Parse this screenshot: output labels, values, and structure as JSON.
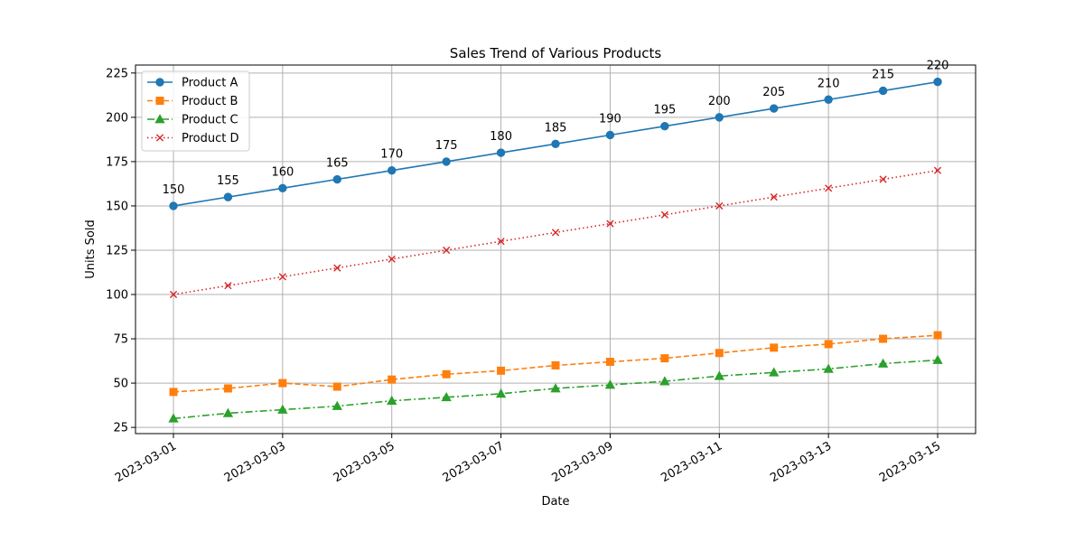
{
  "chart_data": {
    "type": "line",
    "title": "Sales Trend of Various Products",
    "xlabel": "Date",
    "ylabel": "Units Sold",
    "x": [
      "2023-03-01",
      "2023-03-02",
      "2023-03-03",
      "2023-03-04",
      "2023-03-05",
      "2023-03-06",
      "2023-03-07",
      "2023-03-08",
      "2023-03-09",
      "2023-03-10",
      "2023-03-11",
      "2023-03-12",
      "2023-03-13",
      "2023-03-14",
      "2023-03-15"
    ],
    "x_tick_labels": [
      "2023-03-01",
      "2023-03-03",
      "2023-03-05",
      "2023-03-07",
      "2023-03-09",
      "2023-03-11",
      "2023-03-13",
      "2023-03-15"
    ],
    "ylim": [
      21.5,
      229.5
    ],
    "y_ticks": [
      25,
      50,
      75,
      100,
      125,
      150,
      175,
      200,
      225
    ],
    "grid": true,
    "legend_position": "top-left",
    "series": [
      {
        "name": "Product A",
        "color": "#1f77b4",
        "marker": "circle",
        "line_style": "solid",
        "show_data_labels": true,
        "values": [
          150,
          155,
          160,
          165,
          170,
          175,
          180,
          185,
          190,
          195,
          200,
          205,
          210,
          215,
          220
        ]
      },
      {
        "name": "Product B",
        "color": "#ff7f0e",
        "marker": "square",
        "line_style": "dashed",
        "show_data_labels": false,
        "values": [
          45,
          47,
          50,
          48,
          52,
          55,
          57,
          60,
          62,
          64,
          67,
          70,
          72,
          75,
          77
        ]
      },
      {
        "name": "Product C",
        "color": "#2ca02c",
        "marker": "triangle",
        "line_style": "dashdot",
        "show_data_labels": false,
        "values": [
          30,
          33,
          35,
          37,
          40,
          42,
          44,
          47,
          49,
          51,
          54,
          56,
          58,
          61,
          63
        ]
      },
      {
        "name": "Product D",
        "color": "#d62728",
        "marker": "x",
        "line_style": "dotted",
        "show_data_labels": false,
        "values": [
          100,
          105,
          110,
          115,
          120,
          125,
          130,
          135,
          140,
          145,
          150,
          155,
          160,
          165,
          170
        ]
      }
    ]
  }
}
